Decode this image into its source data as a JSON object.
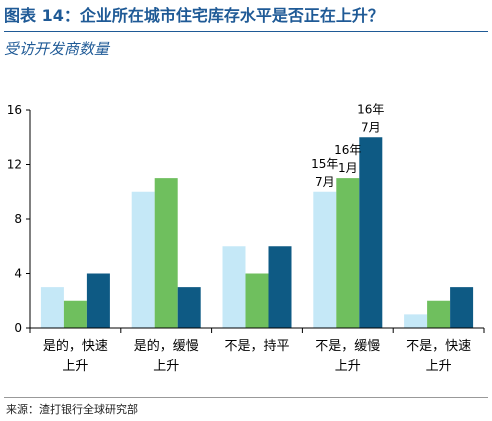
{
  "header": {
    "title": "图表 14：企业所在城市住宅库存水平是否正在上升？",
    "subtitle": "受访开发商数量"
  },
  "footer": {
    "source": "来源：渣打银行全球研究部"
  },
  "chart_data": {
    "type": "bar",
    "categories": [
      [
        "是的，快速",
        "上升"
      ],
      [
        "是的，缓慢",
        "上升"
      ],
      [
        "不是，持平"
      ],
      [
        "不是，缓慢",
        "上升"
      ],
      [
        "不是，快速",
        "上升"
      ]
    ],
    "series": [
      {
        "legend_label": [
          "15年",
          "7月"
        ],
        "color": "#c5e8f7",
        "values": [
          3,
          10,
          6,
          10,
          1
        ]
      },
      {
        "legend_label": [
          "16年",
          "1月"
        ],
        "color": "#6fbf5e",
        "values": [
          2,
          11,
          4,
          11,
          2
        ]
      },
      {
        "legend_label": [
          "16年",
          "7月"
        ],
        "color": "#0e5a84",
        "values": [
          4,
          3,
          6,
          14,
          3
        ]
      }
    ],
    "label_category_index": 3,
    "ylim": [
      0,
      16
    ],
    "yticks": [
      "0",
      "4",
      "8",
      "12",
      "16"
    ],
    "grid": false
  }
}
